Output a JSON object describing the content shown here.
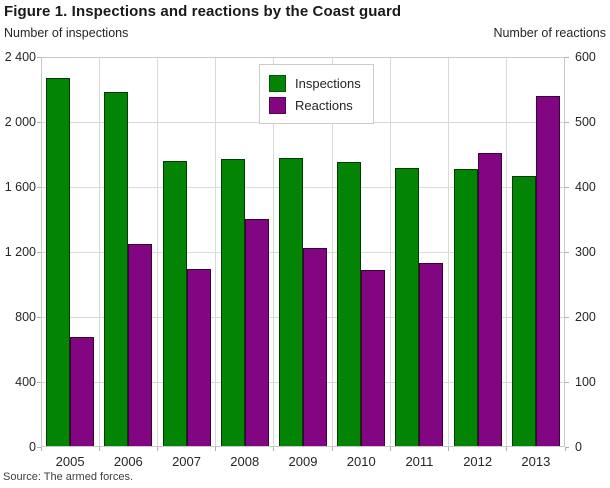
{
  "figure": {
    "title": "Figure 1. Inspections and reactions by the Coast guard",
    "source": "Source: The armed forces."
  },
  "chart_data": {
    "type": "bar",
    "categories": [
      "2005",
      "2006",
      "2007",
      "2008",
      "2009",
      "2010",
      "2011",
      "2012",
      "2013"
    ],
    "series": [
      {
        "name": "Inspections",
        "axis": "left",
        "color": "#048404",
        "values": [
          2270,
          2185,
          1760,
          1775,
          1780,
          1755,
          1715,
          1710,
          1665
        ]
      },
      {
        "name": "Reactions",
        "axis": "right",
        "color": "#820582",
        "values": [
          169,
          312,
          274,
          350,
          306,
          273,
          283,
          452,
          540
        ]
      }
    ],
    "left_axis": {
      "label": "Number of inspections",
      "min": 0,
      "max": 2400,
      "tick_interval": 400,
      "tick_labels": [
        "0",
        "400",
        "800",
        "1 200",
        "1 600",
        "2 000",
        "2 400"
      ]
    },
    "right_axis": {
      "label": "Number of reactions",
      "min": 0,
      "max": 600,
      "tick_interval": 100,
      "tick_labels": [
        "0",
        "100",
        "200",
        "300",
        "400",
        "500",
        "600"
      ]
    },
    "legend": {
      "position": "top-center",
      "items": [
        "Inspections",
        "Reactions"
      ]
    },
    "grid": true,
    "colors": {
      "gridline": "#d9d9d9",
      "plot_border": "#c9c9c9",
      "text": "#262626"
    }
  }
}
